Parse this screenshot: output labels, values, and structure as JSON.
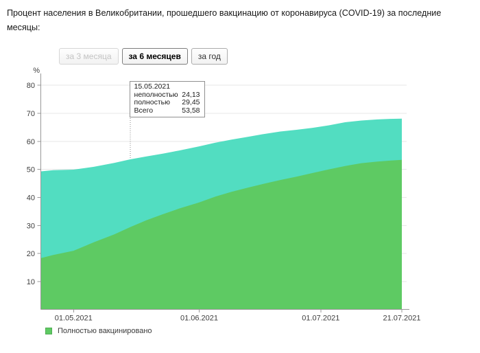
{
  "page": {
    "title": "Процент населения в Великобритании, прошедшего вакцинацию от коронавируса (COVID-19) за последние месяцы:"
  },
  "controls": {
    "range_buttons": [
      {
        "label": "за 3 месяца",
        "state": "disabled"
      },
      {
        "label": "за 6 месяцев",
        "state": "selected"
      },
      {
        "label": "за год",
        "state": "normal"
      }
    ]
  },
  "tooltip": {
    "date": "15.05.2021",
    "rows": [
      {
        "label": "неполностью",
        "value": "24,13"
      },
      {
        "label": "полностью",
        "value": "29,45"
      },
      {
        "label": "Всего",
        "value": "53,58"
      }
    ],
    "total_at_hover": 53.58
  },
  "legend": {
    "items": [
      {
        "label": "Полностью вакцинировано",
        "color": "#5eca63"
      }
    ]
  },
  "chart_data": {
    "type": "area",
    "title": "Процент населения в Великобритании, прошедшего вакцинацию от коронавируса (COVID-19)",
    "unit_label": "%",
    "xlabel": "",
    "ylabel": "%",
    "ylim": [
      0,
      84
    ],
    "grid": true,
    "y_ticks": [
      10,
      20,
      30,
      40,
      50,
      60,
      70,
      80
    ],
    "x_tick_labels": [
      "01.05.2021",
      "01.06.2021",
      "01.07.2021",
      "21.07.2021"
    ],
    "series": [
      {
        "name": "Всего",
        "key": "total",
        "color": "#52ddc1"
      },
      {
        "name": "Полностью вакцинировано",
        "key": "fully",
        "color": "#5eca63"
      }
    ],
    "colors": {
      "axis": "#979797",
      "grid": "#e7e7e7",
      "hover_line": "#8a8a8a",
      "text": "#3d3d3d"
    },
    "points": [
      {
        "date": "23.04.2021",
        "fully": 18.4,
        "total": 49.3
      },
      {
        "date": "26.04.2021",
        "fully": 19.5,
        "total": 49.7
      },
      {
        "date": "01.05.2021",
        "fully": 21.0,
        "total": 49.9
      },
      {
        "date": "06.05.2021",
        "fully": 24.0,
        "total": 50.9
      },
      {
        "date": "11.05.2021",
        "fully": 26.8,
        "total": 52.3
      },
      {
        "date": "15.05.2021",
        "fully": 29.45,
        "total": 53.58
      },
      {
        "date": "19.05.2021",
        "fully": 31.9,
        "total": 54.6
      },
      {
        "date": "23.05.2021",
        "fully": 34.0,
        "total": 55.6
      },
      {
        "date": "27.05.2021",
        "fully": 36.0,
        "total": 56.7
      },
      {
        "date": "01.06.2021",
        "fully": 38.2,
        "total": 58.2
      },
      {
        "date": "05.06.2021",
        "fully": 40.3,
        "total": 59.5
      },
      {
        "date": "09.06.2021",
        "fully": 42.0,
        "total": 60.6
      },
      {
        "date": "13.06.2021",
        "fully": 43.5,
        "total": 61.6
      },
      {
        "date": "17.06.2021",
        "fully": 44.9,
        "total": 62.6
      },
      {
        "date": "21.06.2021",
        "fully": 46.2,
        "total": 63.5
      },
      {
        "date": "25.06.2021",
        "fully": 47.4,
        "total": 64.1
      },
      {
        "date": "29.06.2021",
        "fully": 48.7,
        "total": 64.8
      },
      {
        "date": "03.07.2021",
        "fully": 50.0,
        "total": 65.7
      },
      {
        "date": "07.07.2021",
        "fully": 51.2,
        "total": 66.8
      },
      {
        "date": "11.07.2021",
        "fully": 52.2,
        "total": 67.4
      },
      {
        "date": "15.07.2021",
        "fully": 52.8,
        "total": 67.8
      },
      {
        "date": "18.07.2021",
        "fully": 53.1,
        "total": 68.0
      },
      {
        "date": "21.07.2021",
        "fully": 53.4,
        "total": 68.1
      }
    ]
  }
}
